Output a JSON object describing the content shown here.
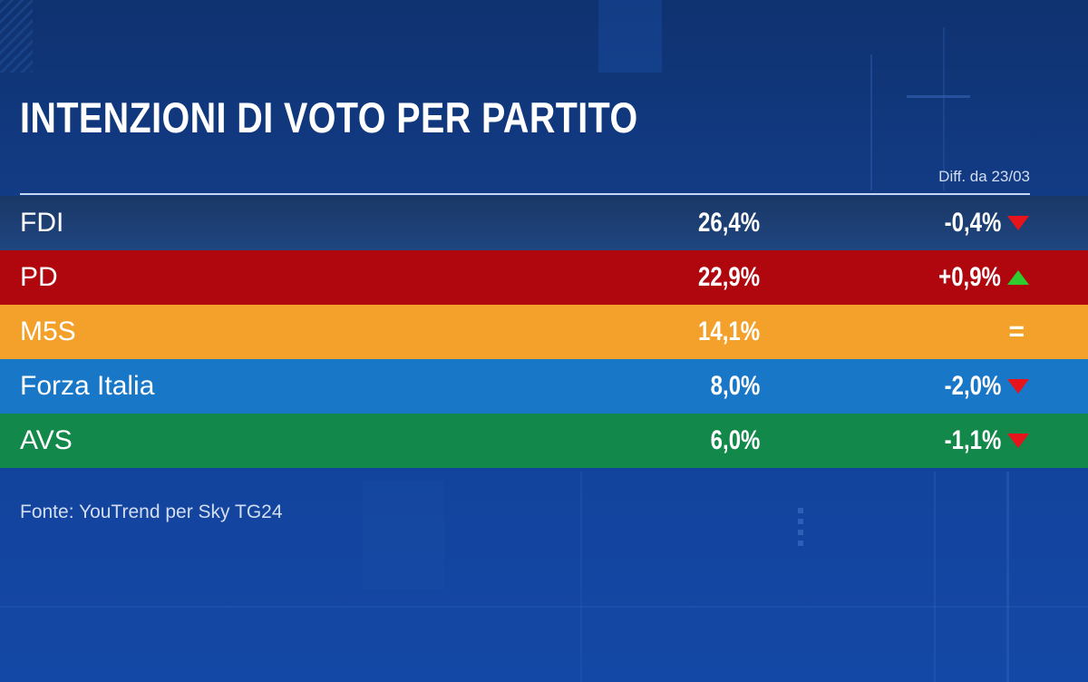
{
  "title": "INTENZIONI DI VOTO PER PARTITO",
  "diff_header": "Diff. da 23/03",
  "source": "Fonte: YouTrend per Sky TG24",
  "colors": {
    "background": "#12429a",
    "up": "#2ecc2e",
    "down": "#e8141b"
  },
  "chart_data": {
    "type": "table",
    "title": "INTENZIONI DI VOTO PER PARTITO",
    "columns": [
      "",
      "",
      "Diff. da 23/03"
    ],
    "rows": [
      {
        "party": "FDI",
        "value": 26.4,
        "value_label": "26,4%",
        "diff": -0.4,
        "diff_label": "-0,4%",
        "trend": "down",
        "color": "#1d3f78"
      },
      {
        "party": "PD",
        "value": 22.9,
        "value_label": "22,9%",
        "diff": 0.9,
        "diff_label": "+0,9%",
        "trend": "up",
        "color": "#b0070f"
      },
      {
        "party": "M5S",
        "value": 14.1,
        "value_label": "14,1%",
        "diff": 0.0,
        "diff_label": "=",
        "trend": "equal",
        "color": "#f4a12b"
      },
      {
        "party": "Forza Italia",
        "value": 8.0,
        "value_label": "8,0%",
        "diff": -2.0,
        "diff_label": "-2,0%",
        "trend": "down",
        "color": "#1877c6"
      },
      {
        "party": "AVS",
        "value": 6.0,
        "value_label": "6,0%",
        "diff": -1.1,
        "diff_label": "-1,1%",
        "trend": "down",
        "color": "#12884a"
      }
    ]
  }
}
